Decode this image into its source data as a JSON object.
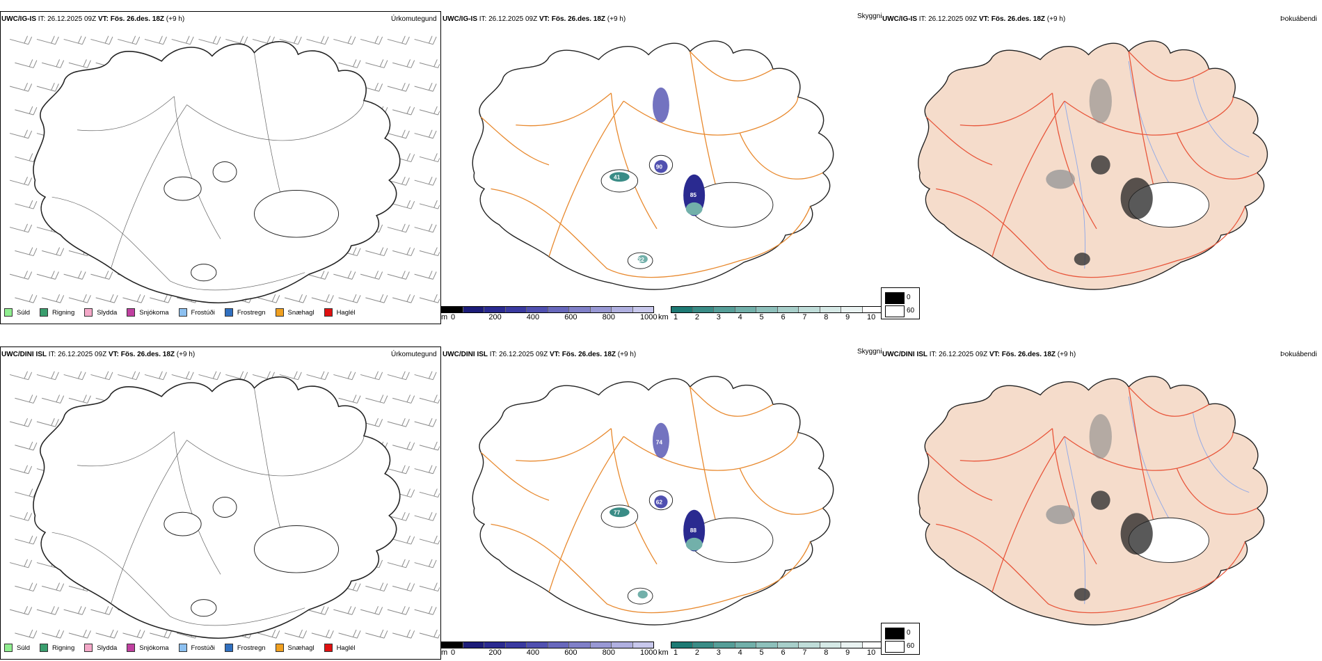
{
  "rows": [
    {
      "model": "UWC/IG-IS",
      "it_label": "IT:",
      "it_value": "26.12.2025 09Z",
      "vt_label": "VT:",
      "vt_value": "Fös. 26.des. 18Z",
      "lead": "(+9 h)",
      "labels": {
        "urkoma": "Úrkomutegund",
        "skyggni": "Skyggni",
        "thoka": "Þokuábendi"
      },
      "peak_labels": [
        "85",
        "90",
        "41",
        "22"
      ]
    },
    {
      "model": "UWC/DINI ISL",
      "it_label": "IT:",
      "it_value": "26.12.2025 09Z",
      "vt_label": "VT:",
      "vt_value": "Fös. 26.des. 18Z",
      "lead": "(+9 h)",
      "labels": {
        "urkoma": "Úrkomutegund",
        "skyggni": "Skyggni",
        "thoka": "Þokuábendi"
      },
      "peak_labels": [
        "88",
        "62",
        "77",
        "74"
      ]
    }
  ],
  "precip_types": [
    {
      "label": "Súld",
      "color": "#90ee90"
    },
    {
      "label": "Rigning",
      "color": "#3a9e6e"
    },
    {
      "label": "Slydda",
      "color": "#f4a8c8"
    },
    {
      "label": "Snjókoma",
      "color": "#c040a0"
    },
    {
      "label": "Frostúði",
      "color": "#8cc0f0"
    },
    {
      "label": "Frostregn",
      "color": "#3070c0"
    },
    {
      "label": "Snæhagl",
      "color": "#f0a020"
    },
    {
      "label": "Haglél",
      "color": "#e01010"
    }
  ],
  "elevation_scale": {
    "unit": "m",
    "ticks": [
      "0",
      "200",
      "400",
      "600",
      "800",
      "1000"
    ],
    "colors": [
      "#000000",
      "#1c1c78",
      "#2a2a90",
      "#3a3aa0",
      "#5050b0",
      "#6868bc",
      "#8080c8",
      "#9898d4",
      "#b0b0e0",
      "#c8c8ec"
    ]
  },
  "visibility_scale": {
    "unit": "km",
    "ticks": [
      "1",
      "2",
      "3",
      "4",
      "5",
      "6",
      "7",
      "8",
      "9",
      "10"
    ],
    "colors": [
      "#1e7a74",
      "#3a8c86",
      "#569e98",
      "#72b0aa",
      "#8ec0bb",
      "#a8cfca",
      "#c0ddd9",
      "#d6e9e6",
      "#eaf3f2",
      "#ffffff"
    ]
  },
  "fog_legend": {
    "high": "0",
    "low": "60"
  }
}
